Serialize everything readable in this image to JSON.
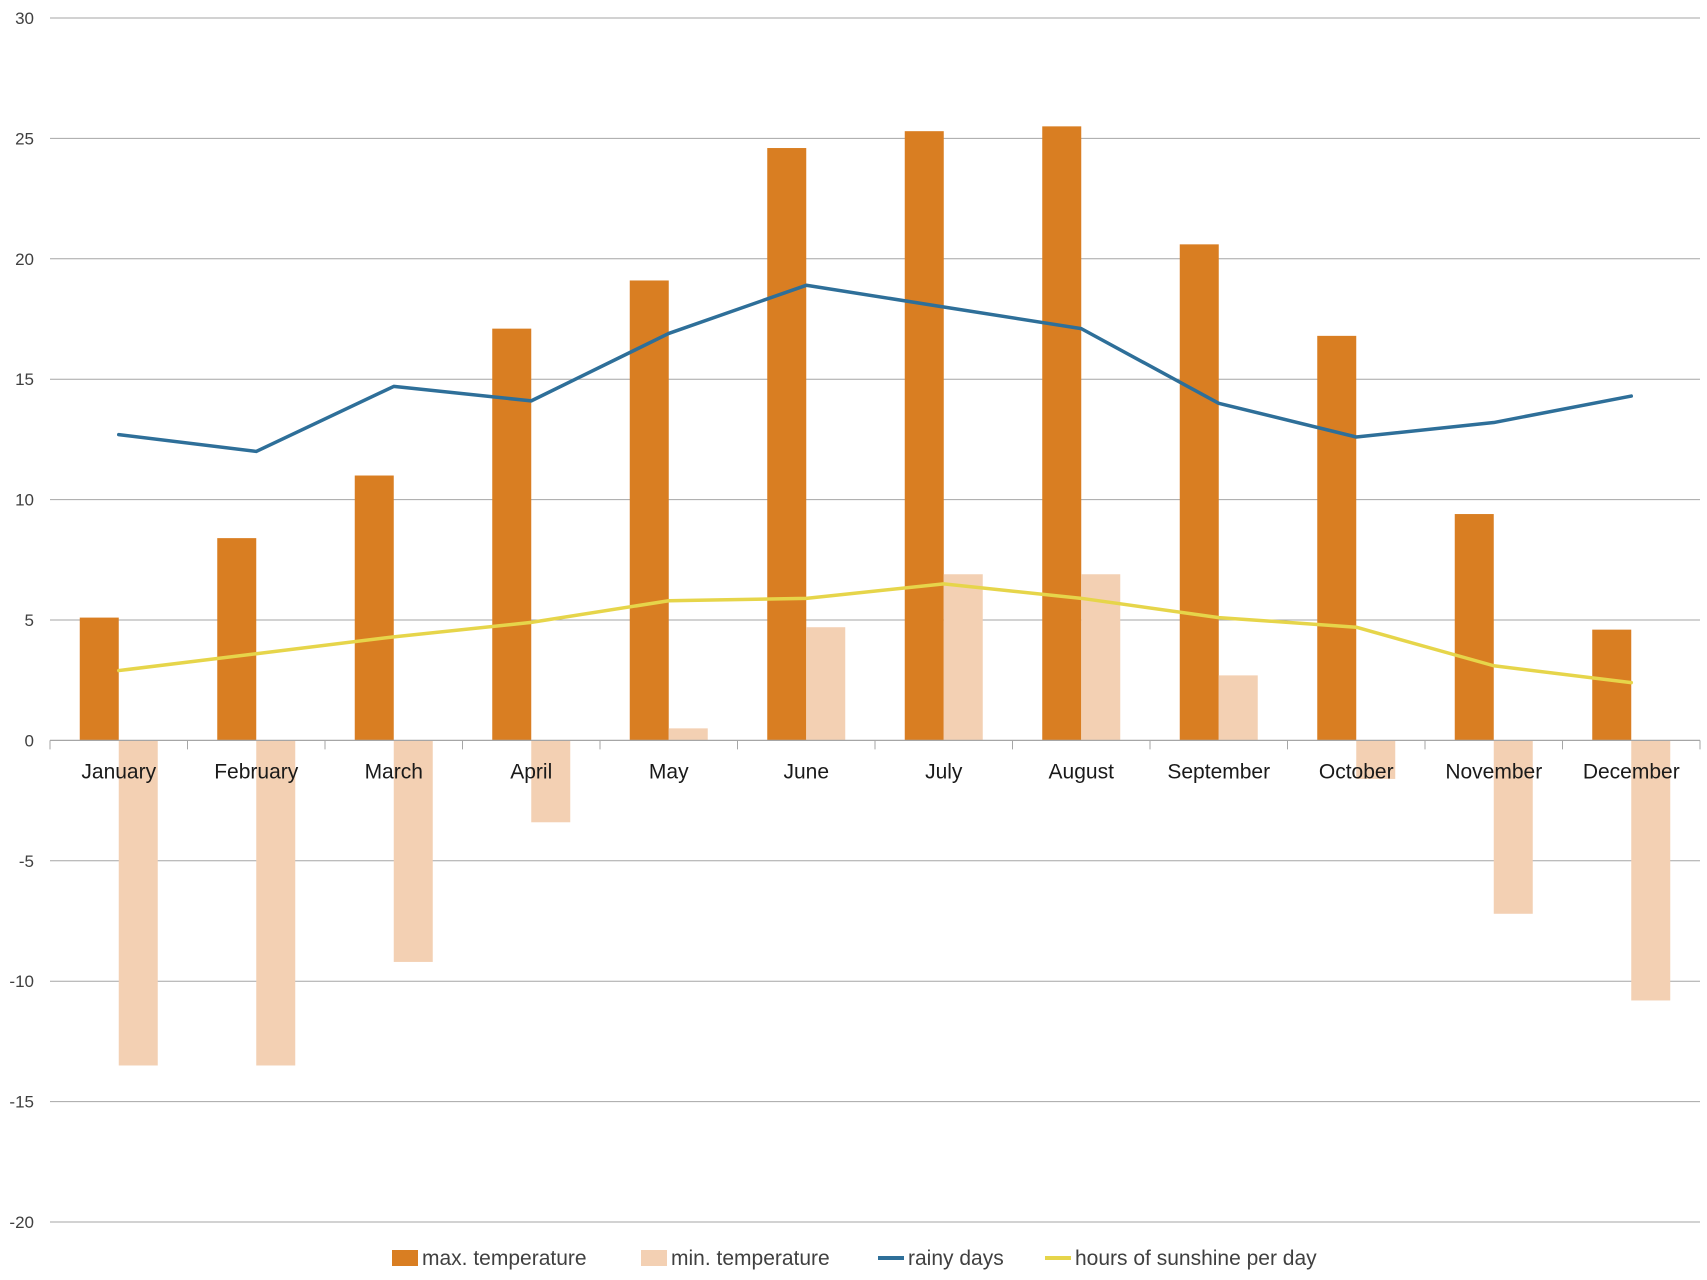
{
  "chart_data": {
    "type": "bar",
    "categories": [
      "January",
      "February",
      "March",
      "April",
      "May",
      "June",
      "July",
      "August",
      "September",
      "October",
      "November",
      "December"
    ],
    "ylim": [
      -20,
      30
    ],
    "yticks": [
      30,
      25,
      20,
      15,
      10,
      5,
      0,
      -5,
      -10,
      -15,
      -20
    ],
    "grid": true,
    "legend_position": "bottom",
    "series": [
      {
        "name": "max.  temperature",
        "kind": "bar",
        "color": "#D97E22",
        "values": [
          5.1,
          8.4,
          11.0,
          17.1,
          19.1,
          24.6,
          25.3,
          25.5,
          20.6,
          16.8,
          9.4,
          4.6
        ]
      },
      {
        "name": "min. temperature",
        "kind": "bar",
        "color": "#F3D0B3",
        "values": [
          -13.5,
          -13.5,
          -9.2,
          -3.4,
          0.5,
          4.7,
          6.9,
          6.9,
          2.7,
          -1.6,
          -7.2,
          -10.8
        ]
      },
      {
        "name": "rainy days",
        "kind": "line",
        "color": "#2E6F99",
        "values": [
          12.7,
          12.0,
          14.7,
          14.1,
          16.9,
          18.9,
          18.0,
          17.1,
          14.0,
          12.6,
          13.2,
          14.3
        ]
      },
      {
        "name": "hours of sunshine per day",
        "kind": "line",
        "color": "#E6D54A",
        "values": [
          2.9,
          3.6,
          4.3,
          4.9,
          5.8,
          5.9,
          6.5,
          5.9,
          5.1,
          4.7,
          3.1,
          2.4
        ]
      }
    ]
  }
}
